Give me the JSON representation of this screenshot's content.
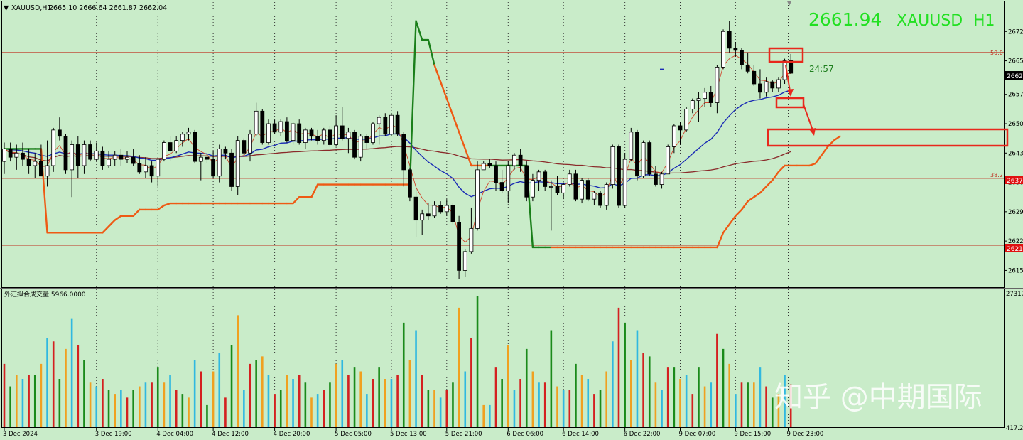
{
  "header": {
    "symbol_line": "XAUUSD,H1",
    "ohlc": "2665.10 2666.64 2661.87 2662.04",
    "big_price": "2661.94",
    "big_symbol": "XAUUSD",
    "big_tf": "H1",
    "countdown": "24:57"
  },
  "volume_panel": {
    "label": "外汇拟合成交量 5966.0000",
    "scale_top": "27317",
    "scale_bottom": "417.2"
  },
  "fib_labels": {
    "upper": "50.0",
    "lower": "38.2"
  },
  "price_tags": {
    "current": "2662",
    "fib_lower": "2637",
    "support": "2621"
  },
  "watermark": "知乎 @中期国际",
  "colors": {
    "background": "#c9ecc9",
    "bull_candle": "#ffffff",
    "bear_candle": "#000000",
    "ma_fast": "#d0442c",
    "ma_blue": "#1a2bb5",
    "ma_slow": "#8a2a2a",
    "stop_line_orange": "#ee5a14",
    "stop_line_green": "#1a7f1a",
    "annotation_red": "#e8281c",
    "big_price_text": "#22e022"
  },
  "chart_data": {
    "type": "candlestick",
    "symbol": "XAUUSD",
    "timeframe": "H1",
    "y_axis": {
      "ticks": [
        "2672",
        "2665",
        "2657",
        "2650",
        "2643",
        "2636",
        "2629",
        "2622",
        "2615"
      ],
      "range": [
        2611,
        2679
      ]
    },
    "x_axis": {
      "ticks": [
        "3 Dec 2024",
        "3 Dec 19:00",
        "4 Dec 04:00",
        "4 Dec 12:00",
        "4 Dec 20:00",
        "5 Dec 05:00",
        "5 Dec 13:00",
        "5 Dec 21:00",
        "6 Dec 06:00",
        "6 Dec 14:00",
        "6 Dec 22:00",
        "9 Dec 07:00",
        "9 Dec 15:00",
        "9 Dec 23:00"
      ]
    },
    "horizontal_levels": [
      {
        "label": "50.0",
        "price": 2667.0
      },
      {
        "label": "38.2",
        "price": 2637.0
      },
      {
        "label": "",
        "price": 2621.0
      }
    ],
    "last_close": 2662.04,
    "last_ohlc": {
      "open": 2665.1,
      "high": 2666.64,
      "low": 2661.87,
      "close": 2662.04
    },
    "candles": [
      [
        2641.0,
        2645.5,
        2638.0,
        2644.0
      ],
      [
        2644.0,
        2645.5,
        2641.0,
        2642.0
      ],
      [
        2642.0,
        2645.0,
        2639.0,
        2643.0
      ],
      [
        2643.0,
        2645.5,
        2640.0,
        2641.5
      ],
      [
        2641.5,
        2644.0,
        2638.0,
        2640.0
      ],
      [
        2640.0,
        2643.0,
        2637.0,
        2641.0
      ],
      [
        2641.0,
        2645.0,
        2637.5,
        2637.5
      ],
      [
        2637.5,
        2646.0,
        2635.0,
        2640.0
      ],
      [
        2640.0,
        2649.0,
        2638.5,
        2648.5
      ],
      [
        2648.5,
        2651.5,
        2646.0,
        2647.0
      ],
      [
        2647.0,
        2647.5,
        2638.0,
        2639.0
      ],
      [
        2639.0,
        2646.0,
        2632.5,
        2645.0
      ],
      [
        2645.0,
        2647.0,
        2637.0,
        2640.0
      ],
      [
        2640.0,
        2646.0,
        2638.0,
        2645.0
      ],
      [
        2645.0,
        2646.0,
        2641.0,
        2641.5
      ],
      [
        2641.5,
        2645.5,
        2641.0,
        2643.5
      ],
      [
        2643.5,
        2644.5,
        2639.0,
        2640.0
      ],
      [
        2640.0,
        2643.5,
        2639.5,
        2641.5
      ],
      [
        2641.5,
        2643.5,
        2640.0,
        2642.5
      ],
      [
        2642.5,
        2644.0,
        2640.0,
        2641.5
      ],
      [
        2641.5,
        2643.5,
        2640.5,
        2642.0
      ],
      [
        2642.0,
        2644.0,
        2640.0,
        2640.5
      ],
      [
        2640.5,
        2642.5,
        2638.0,
        2638.5
      ],
      [
        2638.5,
        2642.0,
        2637.0,
        2640.0
      ],
      [
        2640.0,
        2641.0,
        2636.0,
        2637.5
      ],
      [
        2637.5,
        2642.0,
        2635.0,
        2641.5
      ],
      [
        2641.5,
        2646.0,
        2641.0,
        2645.5
      ],
      [
        2645.5,
        2647.0,
        2641.0,
        2643.5
      ],
      [
        2643.5,
        2647.0,
        2643.0,
        2646.0
      ],
      [
        2646.0,
        2648.0,
        2644.5,
        2647.5
      ],
      [
        2647.5,
        2649.0,
        2646.0,
        2648.0
      ],
      [
        2648.0,
        2648.5,
        2640.5,
        2641.0
      ],
      [
        2641.0,
        2643.0,
        2636.5,
        2642.0
      ],
      [
        2642.0,
        2642.5,
        2640.5,
        2641.5
      ],
      [
        2641.5,
        2643.5,
        2637.0,
        2637.5
      ],
      [
        2637.5,
        2645.0,
        2636.0,
        2644.0
      ],
      [
        2644.0,
        2644.5,
        2641.5,
        2643.0
      ],
      [
        2643.0,
        2644.0,
        2634.0,
        2635.0
      ],
      [
        2635.0,
        2647.0,
        2633.0,
        2646.0
      ],
      [
        2646.0,
        2646.5,
        2642.5,
        2643.0
      ],
      [
        2643.0,
        2648.5,
        2641.0,
        2647.5
      ],
      [
        2647.5,
        2655.0,
        2647.0,
        2653.0
      ],
      [
        2653.0,
        2653.5,
        2645.0,
        2645.5
      ],
      [
        2645.5,
        2651.0,
        2645.0,
        2650.0
      ],
      [
        2650.0,
        2651.0,
        2647.5,
        2648.0
      ],
      [
        2648.0,
        2651.0,
        2647.0,
        2650.5
      ],
      [
        2650.5,
        2651.5,
        2645.5,
        2646.0
      ],
      [
        2646.0,
        2650.5,
        2645.0,
        2650.0
      ],
      [
        2650.0,
        2651.0,
        2645.0,
        2645.5
      ],
      [
        2645.5,
        2649.0,
        2644.0,
        2648.5
      ],
      [
        2648.5,
        2649.0,
        2646.0,
        2647.0
      ],
      [
        2647.0,
        2648.5,
        2645.0,
        2646.0
      ],
      [
        2646.0,
        2649.0,
        2645.0,
        2648.5
      ],
      [
        2648.5,
        2649.5,
        2644.5,
        2645.0
      ],
      [
        2645.0,
        2652.0,
        2644.5,
        2649.5
      ],
      [
        2649.5,
        2654.0,
        2646.0,
        2646.5
      ],
      [
        2646.5,
        2649.0,
        2643.0,
        2648.0
      ],
      [
        2648.0,
        2648.5,
        2641.5,
        2642.0
      ],
      [
        2642.0,
        2647.5,
        2641.0,
        2647.0
      ],
      [
        2647.0,
        2647.5,
        2644.0,
        2645.5
      ],
      [
        2645.5,
        2650.5,
        2645.0,
        2650.0
      ],
      [
        2650.0,
        2652.0,
        2645.0,
        2651.5
      ],
      [
        2651.5,
        2652.5,
        2647.0,
        2647.5
      ],
      [
        2647.5,
        2652.5,
        2647.0,
        2652.0
      ],
      [
        2652.0,
        2653.0,
        2647.0,
        2647.5
      ],
      [
        2647.5,
        2648.0,
        2635.0,
        2639.0
      ],
      [
        2639.0,
        2639.5,
        2631.5,
        2632.5
      ],
      [
        2632.5,
        2635.0,
        2623.0,
        2627.0
      ],
      [
        2627.0,
        2629.5,
        2623.5,
        2628.5
      ],
      [
        2628.5,
        2631.0,
        2627.0,
        2628.0
      ],
      [
        2628.0,
        2631.5,
        2627.5,
        2630.5
      ],
      [
        2630.5,
        2631.5,
        2628.5,
        2629.0
      ],
      [
        2629.0,
        2632.0,
        2628.0,
        2630.5
      ],
      [
        2630.5,
        2631.0,
        2626.0,
        2626.5
      ],
      [
        2626.5,
        2628.0,
        2613.0,
        2615.0
      ],
      [
        2615.0,
        2620.0,
        2613.5,
        2619.5
      ],
      [
        2619.5,
        2630.0,
        2619.0,
        2625.0
      ],
      [
        2625.0,
        2641.0,
        2624.5,
        2639.0
      ],
      [
        2639.0,
        2641.0,
        2639.0,
        2640.5
      ],
      [
        2640.5,
        2641.5,
        2639.5,
        2640.0
      ],
      [
        2640.0,
        2641.0,
        2634.0,
        2636.0
      ],
      [
        2636.0,
        2639.0,
        2633.5,
        2634.0
      ],
      [
        2634.0,
        2641.0,
        2631.0,
        2640.0
      ],
      [
        2640.0,
        2643.0,
        2639.0,
        2642.5
      ],
      [
        2642.5,
        2644.0,
        2638.5,
        2640.0
      ],
      [
        2640.0,
        2641.0,
        2631.5,
        2632.5
      ],
      [
        2632.5,
        2638.0,
        2631.5,
        2636.5
      ],
      [
        2636.5,
        2639.0,
        2634.0,
        2638.5
      ],
      [
        2638.5,
        2639.0,
        2634.0,
        2635.0
      ],
      [
        2635.0,
        2636.5,
        2624.5,
        2635.0
      ],
      [
        2635.0,
        2637.5,
        2633.0,
        2633.5
      ],
      [
        2633.5,
        2636.0,
        2632.0,
        2635.5
      ],
      [
        2635.5,
        2639.0,
        2635.0,
        2638.0
      ],
      [
        2638.0,
        2639.0,
        2631.5,
        2632.0
      ],
      [
        2632.0,
        2637.0,
        2631.0,
        2636.5
      ],
      [
        2636.5,
        2637.0,
        2631.5,
        2632.0
      ],
      [
        2632.0,
        2634.0,
        2630.5,
        2633.5
      ],
      [
        2633.5,
        2634.0,
        2630.0,
        2630.5
      ],
      [
        2630.5,
        2636.0,
        2629.5,
        2635.5
      ],
      [
        2635.5,
        2645.0,
        2634.5,
        2644.5
      ],
      [
        2644.5,
        2645.0,
        2630.0,
        2630.5
      ],
      [
        2630.5,
        2643.0,
        2630.0,
        2641.5
      ],
      [
        2641.5,
        2649.0,
        2641.0,
        2648.0
      ],
      [
        2648.0,
        2648.5,
        2636.5,
        2637.5
      ],
      [
        2637.5,
        2646.0,
        2637.0,
        2645.5
      ],
      [
        2645.5,
        2646.0,
        2637.5,
        2638.0
      ],
      [
        2638.0,
        2640.0,
        2635.0,
        2635.5
      ],
      [
        2635.5,
        2638.5,
        2634.5,
        2638.0
      ],
      [
        2638.0,
        2645.0,
        2638.0,
        2644.5
      ],
      [
        2644.5,
        2650.0,
        2643.0,
        2649.5
      ],
      [
        2649.5,
        2650.5,
        2645.0,
        2648.5
      ],
      [
        2648.5,
        2654.0,
        2648.0,
        2653.5
      ],
      [
        2653.5,
        2656.0,
        2652.5,
        2655.5
      ],
      [
        2655.5,
        2657.5,
        2650.5,
        2656.0
      ],
      [
        2656.0,
        2658.5,
        2654.0,
        2657.5
      ],
      [
        2657.5,
        2659.0,
        2654.0,
        2655.0
      ],
      [
        2655.0,
        2664.0,
        2652.5,
        2663.5
      ],
      [
        2663.5,
        2672.5,
        2663.0,
        2672.0
      ],
      [
        2672.0,
        2674.5,
        2667.0,
        2668.0
      ],
      [
        2668.0,
        2669.5,
        2666.0,
        2667.5
      ],
      [
        2667.5,
        2668.0,
        2663.0,
        2664.0
      ],
      [
        2664.0,
        2667.0,
        2662.0,
        2662.5
      ],
      [
        2662.5,
        2664.0,
        2659.0,
        2659.5
      ],
      [
        2659.5,
        2663.0,
        2656.0,
        2657.5
      ],
      [
        2657.5,
        2661.0,
        2656.5,
        2660.0
      ],
      [
        2660.0,
        2660.5,
        2657.5,
        2658.5
      ],
      [
        2658.5,
        2661.0,
        2657.5,
        2660.5
      ],
      [
        2660.5,
        2665.5,
        2659.5,
        2665.0
      ],
      [
        2665.1,
        2666.64,
        2661.87,
        2662.04
      ]
    ],
    "overlays": {
      "stop_line": [
        2644,
        2644,
        2644,
        2644,
        2644,
        2644,
        2644,
        2624,
        2624,
        2624,
        2624,
        2624,
        2624,
        2624,
        2624,
        2624,
        2624,
        2625.5,
        2627,
        2628,
        2628,
        2628,
        2629.5,
        2629.5,
        2629.5,
        2629.5,
        2630.5,
        2631,
        2631,
        2631,
        2631,
        2631,
        2631,
        2631,
        2631,
        2631,
        2631,
        2631,
        2631,
        2631,
        2631,
        2631,
        2631,
        2631,
        2631,
        2631,
        2631,
        2631,
        2632.5,
        2632.5,
        2632.5,
        2635.5,
        2635.5,
        2635.5,
        2635.5,
        2635.5,
        2635.5,
        2635.5,
        2635.5,
        2635.5,
        2635.5,
        2635.5,
        2635.5,
        2635.5,
        2635.5,
        2635.5,
        2635.5,
        2674.5,
        2670,
        2670,
        2664,
        2660,
        2656,
        2652,
        2648,
        2644,
        2640,
        2640,
        2640,
        2640,
        2640,
        2640,
        2640,
        2640,
        2640,
        2640,
        2620.5,
        2620.5,
        2620.5,
        2620.5,
        2620.5,
        2620.5,
        2620.5,
        2620.5,
        2620.5,
        2620.5,
        2620.5,
        2620.5,
        2620.5,
        2620.5,
        2620.5,
        2620.5,
        2620.5,
        2620.5,
        2620.5,
        2620.5,
        2620.5,
        2620.5,
        2620.5,
        2620.5,
        2620.5,
        2620.5,
        2620.5,
        2620.5,
        2620.5,
        2620.5,
        2620.5,
        2624,
        2626,
        2628,
        2629.5,
        2631.5,
        2632.5,
        2633.5,
        2635,
        2636.5,
        2638.5,
        2640,
        2640,
        2640,
        2640,
        2640,
        2640.5,
        2642.5,
        2644.5,
        2646,
        2647
      ],
      "stop_line_green_segments": [
        [
          0,
          6
        ],
        [
          66,
          70
        ],
        [
          79,
          89
        ]
      ]
    }
  }
}
